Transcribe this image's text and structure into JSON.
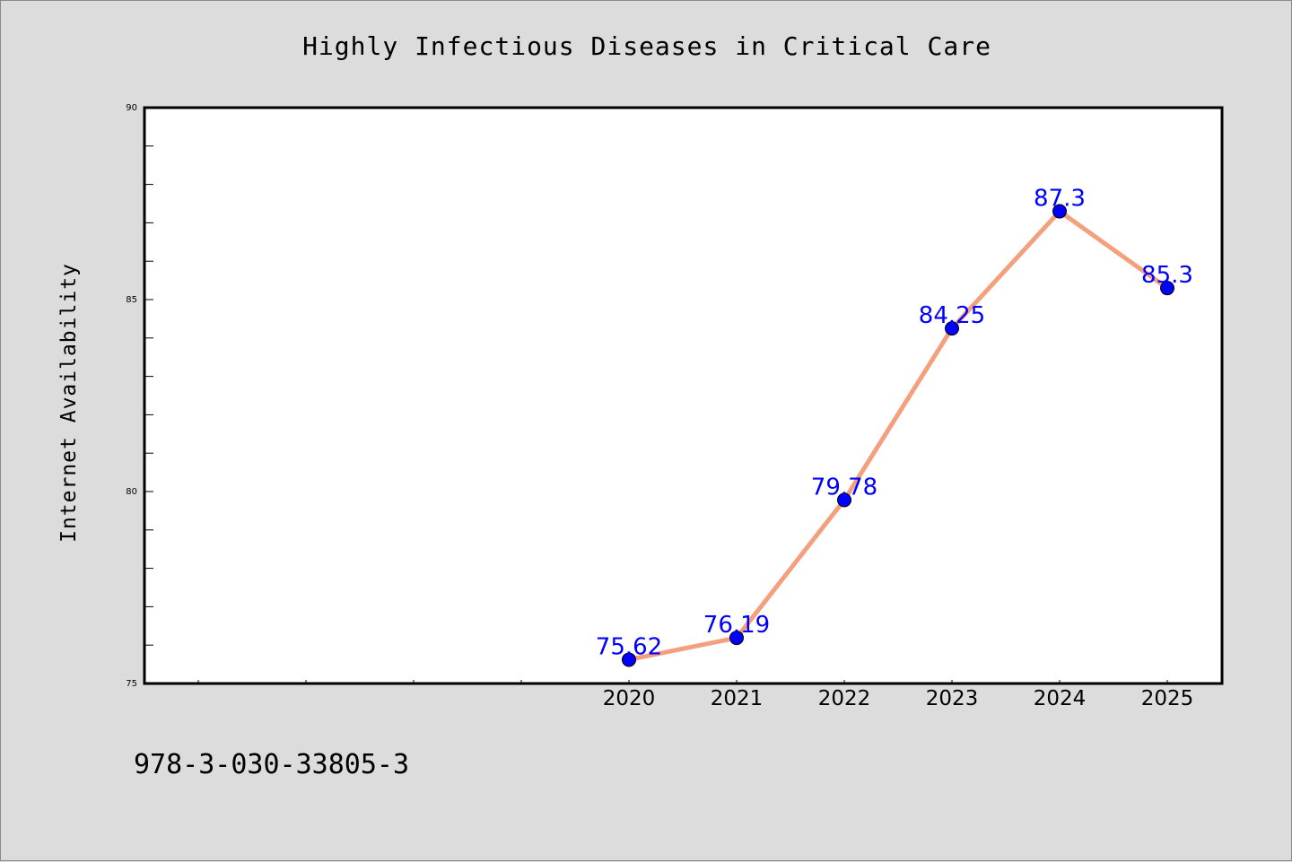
{
  "chart_data": {
    "type": "line",
    "title": "Highly Infectious Diseases in Critical Care",
    "xlabel": "",
    "ylabel": "Internet Availability",
    "categories": [
      "2020",
      "2021",
      "2022",
      "2023",
      "2024",
      "2025"
    ],
    "values": [
      75.62,
      76.19,
      79.78,
      84.25,
      87.3,
      85.3
    ],
    "data_labels": [
      "75.62",
      "76.19",
      "79.78",
      "84.25",
      "87.3",
      "85.3"
    ],
    "ylim": [
      75,
      90
    ],
    "y_ticks": [
      "75",
      "80",
      "85",
      "90"
    ],
    "line_color": "#f4a07e",
    "marker_color": "#0000ff",
    "label_color": "#0000ff",
    "grid": false,
    "legend": "none"
  },
  "footer": {
    "isbn": "978-3-030-33805-3"
  }
}
